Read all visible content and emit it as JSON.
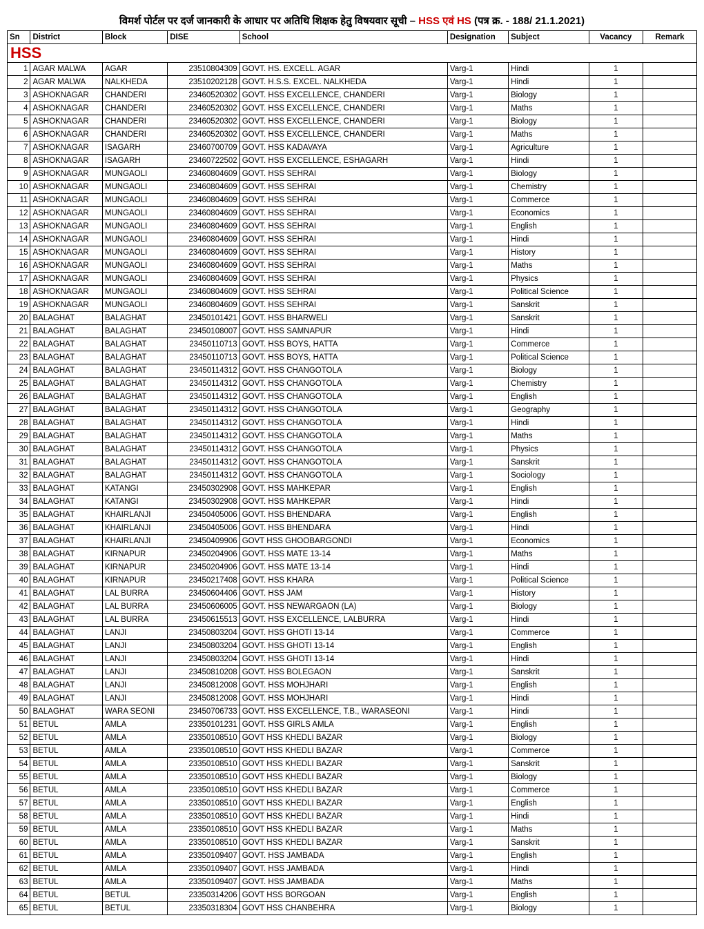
{
  "title": {
    "part1": "विमर्श पोर्टल पर दर्ज जानकारी के आधार पर अतिथि शिक्षक हेतु विषयवार सूची – ",
    "highlight": "HSS एवं HS",
    "part2": "  (पत्र क्र. - 188/ 21.1.2021)"
  },
  "columns": [
    "Sn",
    "District",
    "Block",
    "DISE",
    "School",
    "Designation",
    "Subject",
    "Vacancy",
    "Remark"
  ],
  "section_label": "HSS",
  "rows": [
    {
      "sn": "1",
      "district": "AGAR MALWA",
      "block": "AGAR",
      "dise": "23510804309",
      "school": "GOVT. HS. EXCELL.   AGAR",
      "desig": "Varg-1",
      "subject": "Hindi",
      "vacancy": "1",
      "remark": ""
    },
    {
      "sn": "2",
      "district": "AGAR MALWA",
      "block": "NALKHEDA",
      "dise": "23510202128",
      "school": "GOVT. H.S.S. EXCEL. NALKHEDA",
      "desig": "Varg-1",
      "subject": "Hindi",
      "vacancy": "1",
      "remark": ""
    },
    {
      "sn": "3",
      "district": "ASHOKNAGAR",
      "block": "CHANDERI",
      "dise": "23460520302",
      "school": "GOVT. HSS EXCELLENCE, CHANDERI",
      "desig": "Varg-1",
      "subject": "Biology",
      "vacancy": "1",
      "remark": ""
    },
    {
      "sn": "4",
      "district": "ASHOKNAGAR",
      "block": "CHANDERI",
      "dise": "23460520302",
      "school": "GOVT. HSS EXCELLENCE, CHANDERI",
      "desig": "Varg-1",
      "subject": "Maths",
      "vacancy": "1",
      "remark": ""
    },
    {
      "sn": "5",
      "district": "ASHOKNAGAR",
      "block": "CHANDERI",
      "dise": "23460520302",
      "school": "GOVT. HSS EXCELLENCE, CHANDERI",
      "desig": "Varg-1",
      "subject": "Biology",
      "vacancy": "1",
      "remark": ""
    },
    {
      "sn": "6",
      "district": "ASHOKNAGAR",
      "block": "CHANDERI",
      "dise": "23460520302",
      "school": "GOVT. HSS EXCELLENCE, CHANDERI",
      "desig": "Varg-1",
      "subject": "Maths",
      "vacancy": "1",
      "remark": ""
    },
    {
      "sn": "7",
      "district": "ASHOKNAGAR",
      "block": "ISAGARH",
      "dise": "23460700709",
      "school": "GOVT. HSS KADAVAYA",
      "desig": "Varg-1",
      "subject": "Agriculture",
      "vacancy": "1",
      "remark": ""
    },
    {
      "sn": "8",
      "district": "ASHOKNAGAR",
      "block": "ISAGARH",
      "dise": "23460722502",
      "school": "GOVT. HSS EXCELLENCE, ESHAGARH",
      "desig": "Varg-1",
      "subject": "Hindi",
      "vacancy": "1",
      "remark": ""
    },
    {
      "sn": "9",
      "district": "ASHOKNAGAR",
      "block": "MUNGAOLI",
      "dise": "23460804609",
      "school": "GOVT. HSS SEHRAI",
      "desig": "Varg-1",
      "subject": "Biology",
      "vacancy": "1",
      "remark": ""
    },
    {
      "sn": "10",
      "district": "ASHOKNAGAR",
      "block": "MUNGAOLI",
      "dise": "23460804609",
      "school": "GOVT. HSS SEHRAI",
      "desig": "Varg-1",
      "subject": "Chemistry",
      "vacancy": "1",
      "remark": ""
    },
    {
      "sn": "11",
      "district": "ASHOKNAGAR",
      "block": "MUNGAOLI",
      "dise": "23460804609",
      "school": "GOVT. HSS SEHRAI",
      "desig": "Varg-1",
      "subject": "Commerce",
      "vacancy": "1",
      "remark": ""
    },
    {
      "sn": "12",
      "district": "ASHOKNAGAR",
      "block": "MUNGAOLI",
      "dise": "23460804609",
      "school": "GOVT. HSS SEHRAI",
      "desig": "Varg-1",
      "subject": "Economics",
      "vacancy": "1",
      "remark": ""
    },
    {
      "sn": "13",
      "district": "ASHOKNAGAR",
      "block": "MUNGAOLI",
      "dise": "23460804609",
      "school": "GOVT. HSS SEHRAI",
      "desig": "Varg-1",
      "subject": "English",
      "vacancy": "1",
      "remark": ""
    },
    {
      "sn": "14",
      "district": "ASHOKNAGAR",
      "block": "MUNGAOLI",
      "dise": "23460804609",
      "school": "GOVT. HSS SEHRAI",
      "desig": "Varg-1",
      "subject": "Hindi",
      "vacancy": "1",
      "remark": ""
    },
    {
      "sn": "15",
      "district": "ASHOKNAGAR",
      "block": "MUNGAOLI",
      "dise": "23460804609",
      "school": "GOVT. HSS SEHRAI",
      "desig": "Varg-1",
      "subject": "History",
      "vacancy": "1",
      "remark": ""
    },
    {
      "sn": "16",
      "district": "ASHOKNAGAR",
      "block": "MUNGAOLI",
      "dise": "23460804609",
      "school": "GOVT. HSS SEHRAI",
      "desig": "Varg-1",
      "subject": "Maths",
      "vacancy": "1",
      "remark": ""
    },
    {
      "sn": "17",
      "district": "ASHOKNAGAR",
      "block": "MUNGAOLI",
      "dise": "23460804609",
      "school": "GOVT. HSS SEHRAI",
      "desig": "Varg-1",
      "subject": "Physics",
      "vacancy": "1",
      "remark": ""
    },
    {
      "sn": "18",
      "district": "ASHOKNAGAR",
      "block": "MUNGAOLI",
      "dise": "23460804609",
      "school": "GOVT. HSS SEHRAI",
      "desig": "Varg-1",
      "subject": "Political Science",
      "vacancy": "1",
      "remark": ""
    },
    {
      "sn": "19",
      "district": "ASHOKNAGAR",
      "block": "MUNGAOLI",
      "dise": "23460804609",
      "school": "GOVT. HSS SEHRAI",
      "desig": "Varg-1",
      "subject": "Sanskrit",
      "vacancy": "1",
      "remark": ""
    },
    {
      "sn": "20",
      "district": "BALAGHAT",
      "block": "BALAGHAT",
      "dise": "23450101421",
      "school": "GOVT. HSS BHARWELI",
      "desig": "Varg-1",
      "subject": "Sanskrit",
      "vacancy": "1",
      "remark": ""
    },
    {
      "sn": "21",
      "district": "BALAGHAT",
      "block": "BALAGHAT",
      "dise": "23450108007",
      "school": "GOVT. HSS SAMNAPUR",
      "desig": "Varg-1",
      "subject": "Hindi",
      "vacancy": "1",
      "remark": ""
    },
    {
      "sn": "22",
      "district": "BALAGHAT",
      "block": "BALAGHAT",
      "dise": "23450110713",
      "school": "GOVT. HSS BOYS, HATTA",
      "desig": "Varg-1",
      "subject": "Commerce",
      "vacancy": "1",
      "remark": ""
    },
    {
      "sn": "23",
      "district": "BALAGHAT",
      "block": "BALAGHAT",
      "dise": "23450110713",
      "school": "GOVT. HSS BOYS, HATTA",
      "desig": "Varg-1",
      "subject": "Political Science",
      "vacancy": "1",
      "remark": ""
    },
    {
      "sn": "24",
      "district": "BALAGHAT",
      "block": "BALAGHAT",
      "dise": "23450114312",
      "school": "GOVT. HSS CHANGOTOLA",
      "desig": "Varg-1",
      "subject": "Biology",
      "vacancy": "1",
      "remark": ""
    },
    {
      "sn": "25",
      "district": "BALAGHAT",
      "block": "BALAGHAT",
      "dise": "23450114312",
      "school": "GOVT. HSS CHANGOTOLA",
      "desig": "Varg-1",
      "subject": "Chemistry",
      "vacancy": "1",
      "remark": ""
    },
    {
      "sn": "26",
      "district": "BALAGHAT",
      "block": "BALAGHAT",
      "dise": "23450114312",
      "school": "GOVT. HSS CHANGOTOLA",
      "desig": "Varg-1",
      "subject": "English",
      "vacancy": "1",
      "remark": ""
    },
    {
      "sn": "27",
      "district": "BALAGHAT",
      "block": "BALAGHAT",
      "dise": "23450114312",
      "school": "GOVT. HSS CHANGOTOLA",
      "desig": "Varg-1",
      "subject": "Geography",
      "vacancy": "1",
      "remark": ""
    },
    {
      "sn": "28",
      "district": "BALAGHAT",
      "block": "BALAGHAT",
      "dise": "23450114312",
      "school": "GOVT. HSS CHANGOTOLA",
      "desig": "Varg-1",
      "subject": "Hindi",
      "vacancy": "1",
      "remark": ""
    },
    {
      "sn": "29",
      "district": "BALAGHAT",
      "block": "BALAGHAT",
      "dise": "23450114312",
      "school": "GOVT. HSS CHANGOTOLA",
      "desig": "Varg-1",
      "subject": "Maths",
      "vacancy": "1",
      "remark": ""
    },
    {
      "sn": "30",
      "district": "BALAGHAT",
      "block": "BALAGHAT",
      "dise": "23450114312",
      "school": "GOVT. HSS CHANGOTOLA",
      "desig": "Varg-1",
      "subject": "Physics",
      "vacancy": "1",
      "remark": ""
    },
    {
      "sn": "31",
      "district": "BALAGHAT",
      "block": "BALAGHAT",
      "dise": "23450114312",
      "school": "GOVT. HSS CHANGOTOLA",
      "desig": "Varg-1",
      "subject": "Sanskrit",
      "vacancy": "1",
      "remark": ""
    },
    {
      "sn": "32",
      "district": "BALAGHAT",
      "block": "BALAGHAT",
      "dise": "23450114312",
      "school": "GOVT. HSS CHANGOTOLA",
      "desig": "Varg-1",
      "subject": "Sociology",
      "vacancy": "1",
      "remark": ""
    },
    {
      "sn": "33",
      "district": "BALAGHAT",
      "block": "KATANGI",
      "dise": "23450302908",
      "school": "GOVT. HSS MAHKEPAR",
      "desig": "Varg-1",
      "subject": "English",
      "vacancy": "1",
      "remark": ""
    },
    {
      "sn": "34",
      "district": "BALAGHAT",
      "block": "KATANGI",
      "dise": "23450302908",
      "school": "GOVT. HSS MAHKEPAR",
      "desig": "Varg-1",
      "subject": "Hindi",
      "vacancy": "1",
      "remark": ""
    },
    {
      "sn": "35",
      "district": "BALAGHAT",
      "block": "KHAIRLANJI",
      "dise": "23450405006",
      "school": "GOVT. HSS BHENDARA",
      "desig": "Varg-1",
      "subject": "English",
      "vacancy": "1",
      "remark": ""
    },
    {
      "sn": "36",
      "district": "BALAGHAT",
      "block": "KHAIRLANJI",
      "dise": "23450405006",
      "school": "GOVT. HSS BHENDARA",
      "desig": "Varg-1",
      "subject": "Hindi",
      "vacancy": "1",
      "remark": ""
    },
    {
      "sn": "37",
      "district": "BALAGHAT",
      "block": "KHAIRLANJI",
      "dise": "23450409906",
      "school": "GOVT HSS GHOOBARGONDI",
      "desig": "Varg-1",
      "subject": "Economics",
      "vacancy": "1",
      "remark": ""
    },
    {
      "sn": "38",
      "district": "BALAGHAT",
      "block": "KIRNAPUR",
      "dise": "23450204906",
      "school": "GOVT. HSS MATE 13-14",
      "desig": "Varg-1",
      "subject": "Maths",
      "vacancy": "1",
      "remark": ""
    },
    {
      "sn": "39",
      "district": "BALAGHAT",
      "block": "KIRNAPUR",
      "dise": "23450204906",
      "school": "GOVT. HSS MATE 13-14",
      "desig": "Varg-1",
      "subject": "Hindi",
      "vacancy": "1",
      "remark": ""
    },
    {
      "sn": "40",
      "district": "BALAGHAT",
      "block": "KIRNAPUR",
      "dise": "23450217408",
      "school": "GOVT. HSS KHARA",
      "desig": "Varg-1",
      "subject": "Political Science",
      "vacancy": "1",
      "remark": ""
    },
    {
      "sn": "41",
      "district": "BALAGHAT",
      "block": "LAL BURRA",
      "dise": "23450604406",
      "school": "GOVT. HSS JAM",
      "desig": "Varg-1",
      "subject": "History",
      "vacancy": "1",
      "remark": ""
    },
    {
      "sn": "42",
      "district": "BALAGHAT",
      "block": "LAL BURRA",
      "dise": "23450606005",
      "school": "GOVT. HSS NEWARGAON  (LA)",
      "desig": "Varg-1",
      "subject": "Biology",
      "vacancy": "1",
      "remark": ""
    },
    {
      "sn": "43",
      "district": "BALAGHAT",
      "block": "LAL BURRA",
      "dise": "23450615513",
      "school": "GOVT. HSS EXCELLENCE, LALBURRA",
      "desig": "Varg-1",
      "subject": "Hindi",
      "vacancy": "1",
      "remark": ""
    },
    {
      "sn": "44",
      "district": "BALAGHAT",
      "block": "LANJI",
      "dise": "23450803204",
      "school": "GOVT. HSS GHOTI 13-14",
      "desig": "Varg-1",
      "subject": "Commerce",
      "vacancy": "1",
      "remark": ""
    },
    {
      "sn": "45",
      "district": "BALAGHAT",
      "block": "LANJI",
      "dise": "23450803204",
      "school": "GOVT. HSS GHOTI 13-14",
      "desig": "Varg-1",
      "subject": "English",
      "vacancy": "1",
      "remark": ""
    },
    {
      "sn": "46",
      "district": "BALAGHAT",
      "block": "LANJI",
      "dise": "23450803204",
      "school": "GOVT. HSS GHOTI 13-14",
      "desig": "Varg-1",
      "subject": "Hindi",
      "vacancy": "1",
      "remark": ""
    },
    {
      "sn": "47",
      "district": "BALAGHAT",
      "block": "LANJI",
      "dise": "23450810208",
      "school": "GOVT. HSS BOLEGAON",
      "desig": "Varg-1",
      "subject": "Sanskrit",
      "vacancy": "1",
      "remark": ""
    },
    {
      "sn": "48",
      "district": "BALAGHAT",
      "block": "LANJI",
      "dise": "23450812008",
      "school": "GOVT. HSS MOHJHARI",
      "desig": "Varg-1",
      "subject": "English",
      "vacancy": "1",
      "remark": ""
    },
    {
      "sn": "49",
      "district": "BALAGHAT",
      "block": "LANJI",
      "dise": "23450812008",
      "school": "GOVT. HSS MOHJHARI",
      "desig": "Varg-1",
      "subject": "Hindi",
      "vacancy": "1",
      "remark": ""
    },
    {
      "sn": "50",
      "district": "BALAGHAT",
      "block": "WARA SEONI",
      "dise": "23450706733",
      "school": "GOVT. HSS EXCELLENCE, T.B., WARASEONI",
      "desig": "Varg-1",
      "subject": "Hindi",
      "vacancy": "1",
      "remark": ""
    },
    {
      "sn": "51",
      "district": "BETUL",
      "block": "AMLA",
      "dise": "23350101231",
      "school": "GOVT. HSS GIRLS AMLA",
      "desig": "Varg-1",
      "subject": "English",
      "vacancy": "1",
      "remark": ""
    },
    {
      "sn": "52",
      "district": "BETUL",
      "block": "AMLA",
      "dise": "23350108510",
      "school": "GOVT HSS KHEDLI BAZAR",
      "desig": "Varg-1",
      "subject": "Biology",
      "vacancy": "1",
      "remark": ""
    },
    {
      "sn": "53",
      "district": "BETUL",
      "block": "AMLA",
      "dise": "23350108510",
      "school": "GOVT HSS KHEDLI BAZAR",
      "desig": "Varg-1",
      "subject": "Commerce",
      "vacancy": "1",
      "remark": ""
    },
    {
      "sn": "54",
      "district": "BETUL",
      "block": "AMLA",
      "dise": "23350108510",
      "school": "GOVT HSS KHEDLI BAZAR",
      "desig": "Varg-1",
      "subject": "Sanskrit",
      "vacancy": "1",
      "remark": ""
    },
    {
      "sn": "55",
      "district": "BETUL",
      "block": "AMLA",
      "dise": "23350108510",
      "school": "GOVT HSS KHEDLI BAZAR",
      "desig": "Varg-1",
      "subject": "Biology",
      "vacancy": "1",
      "remark": ""
    },
    {
      "sn": "56",
      "district": "BETUL",
      "block": "AMLA",
      "dise": "23350108510",
      "school": "GOVT HSS KHEDLI BAZAR",
      "desig": "Varg-1",
      "subject": "Commerce",
      "vacancy": "1",
      "remark": ""
    },
    {
      "sn": "57",
      "district": "BETUL",
      "block": "AMLA",
      "dise": "23350108510",
      "school": "GOVT HSS KHEDLI BAZAR",
      "desig": "Varg-1",
      "subject": "English",
      "vacancy": "1",
      "remark": ""
    },
    {
      "sn": "58",
      "district": "BETUL",
      "block": "AMLA",
      "dise": "23350108510",
      "school": "GOVT HSS KHEDLI BAZAR",
      "desig": "Varg-1",
      "subject": "Hindi",
      "vacancy": "1",
      "remark": ""
    },
    {
      "sn": "59",
      "district": "BETUL",
      "block": "AMLA",
      "dise": "23350108510",
      "school": "GOVT HSS KHEDLI BAZAR",
      "desig": "Varg-1",
      "subject": "Maths",
      "vacancy": "1",
      "remark": ""
    },
    {
      "sn": "60",
      "district": "BETUL",
      "block": "AMLA",
      "dise": "23350108510",
      "school": "GOVT HSS KHEDLI BAZAR",
      "desig": "Varg-1",
      "subject": "Sanskrit",
      "vacancy": "1",
      "remark": ""
    },
    {
      "sn": "61",
      "district": "BETUL",
      "block": "AMLA",
      "dise": "23350109407",
      "school": "GOVT. HSS JAMBADA",
      "desig": "Varg-1",
      "subject": "English",
      "vacancy": "1",
      "remark": ""
    },
    {
      "sn": "62",
      "district": "BETUL",
      "block": "AMLA",
      "dise": "23350109407",
      "school": "GOVT. HSS JAMBADA",
      "desig": "Varg-1",
      "subject": "Hindi",
      "vacancy": "1",
      "remark": ""
    },
    {
      "sn": "63",
      "district": "BETUL",
      "block": "AMLA",
      "dise": "23350109407",
      "school": "GOVT. HSS JAMBADA",
      "desig": "Varg-1",
      "subject": "Maths",
      "vacancy": "1",
      "remark": ""
    },
    {
      "sn": "64",
      "district": "BETUL",
      "block": "BETUL",
      "dise": "23350314206",
      "school": "GOVT HSS BORGOAN",
      "desig": "Varg-1",
      "subject": "English",
      "vacancy": "1",
      "remark": ""
    },
    {
      "sn": "65",
      "district": "BETUL",
      "block": "BETUL",
      "dise": "23350318304",
      "school": "GOVT HSS CHANBEHRA",
      "desig": "Varg-1",
      "subject": "Biology",
      "vacancy": "1",
      "remark": ""
    }
  ]
}
